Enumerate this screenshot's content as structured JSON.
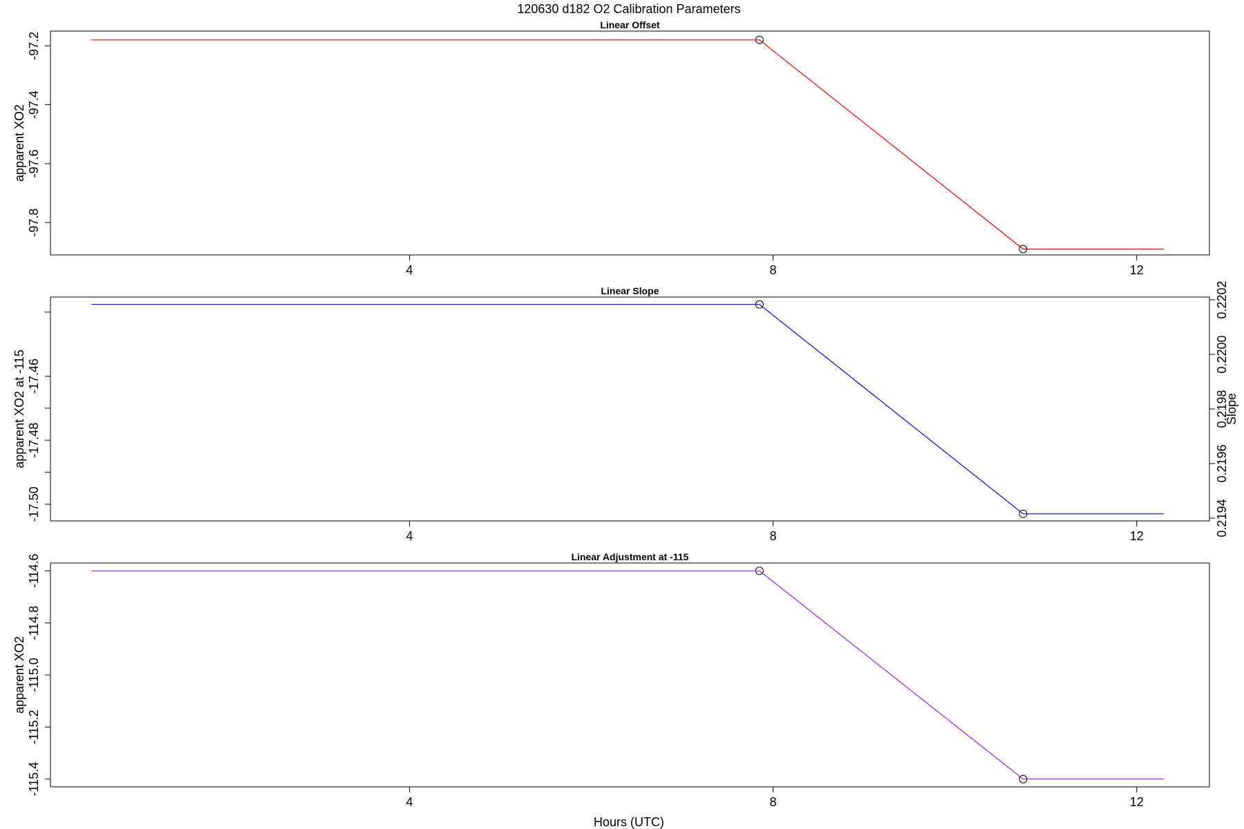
{
  "figure": {
    "title": "120630   d182   O2 Calibration Parameters",
    "xlabel": "Hours (UTC)"
  },
  "chart_data": [
    {
      "type": "line",
      "title": "Linear Offset",
      "xlabel": "",
      "ylabel": "apparent XO2",
      "x_ticks": [
        4,
        8,
        12
      ],
      "y_ticks": [
        -97.2,
        -97.4,
        -97.6,
        -97.8
      ],
      "y_tick_labels": [
        "-97.2",
        "-97.4",
        "-97.6",
        "-97.8"
      ],
      "xlim": [
        0.05,
        12.8
      ],
      "ylim": [
        -97.91,
        -97.15
      ],
      "series": [
        {
          "color": "#ff0000",
          "x": [
            0.5,
            7.85,
            10.75,
            12.3
          ],
          "y": [
            -97.18,
            -97.18,
            -97.89,
            -97.89
          ]
        }
      ],
      "markers": [
        {
          "x": 7.85,
          "y": -97.18
        },
        {
          "x": 10.75,
          "y": -97.89
        }
      ]
    },
    {
      "type": "line",
      "title": "Linear Slope",
      "xlabel": "",
      "ylabel": "apparent XO2 at -115",
      "y2label": "Slope",
      "x_ticks": [
        4,
        8,
        12
      ],
      "y_ticks": [
        -17.46,
        -17.48,
        -17.5
      ],
      "y_tick_labels": [
        "-17.46",
        "-17.48",
        "-17.50"
      ],
      "y_minor_ticks": [
        -17.44,
        -17.47,
        -17.49
      ],
      "y2_ticks": [
        0.2194,
        0.2196,
        0.2198,
        0.22,
        0.2202
      ],
      "y2_tick_labels": [
        "0.2194",
        "0.2196",
        "0.2198",
        "0.2200",
        "0.2202"
      ],
      "xlim": [
        0.05,
        12.8
      ],
      "ylim": [
        -17.5052,
        -17.4353
      ],
      "y2lim": [
        0.21939,
        0.22021
      ],
      "series": [
        {
          "color": "#0000ff",
          "x": [
            0.5,
            7.85,
            10.75,
            12.3
          ],
          "y": [
            -17.4376,
            -17.4376,
            -17.503,
            -17.503
          ]
        }
      ],
      "markers": [
        {
          "x": 7.85,
          "y": -17.4376
        },
        {
          "x": 10.75,
          "y": -17.503
        }
      ]
    },
    {
      "type": "line",
      "title": "Linear Adjustment at -115",
      "xlabel": "",
      "ylabel": "apparent XO2",
      "x_ticks": [
        4,
        8,
        12
      ],
      "y_ticks": [
        -114.6,
        -114.8,
        -115.0,
        -115.2,
        -115.4
      ],
      "y_tick_labels": [
        "-114.6",
        "-114.8",
        "-115.0",
        "-115.2",
        "-115.4"
      ],
      "xlim": [
        0.05,
        12.8
      ],
      "ylim": [
        -115.43,
        -114.57
      ],
      "series": [
        {
          "color": "#a020f0",
          "x": [
            0.5,
            7.85,
            10.75,
            12.3
          ],
          "y": [
            -114.6,
            -114.6,
            -115.4,
            -115.4
          ]
        }
      ],
      "markers": [
        {
          "x": 7.85,
          "y": -114.6
        },
        {
          "x": 10.75,
          "y": -115.4
        }
      ]
    }
  ]
}
